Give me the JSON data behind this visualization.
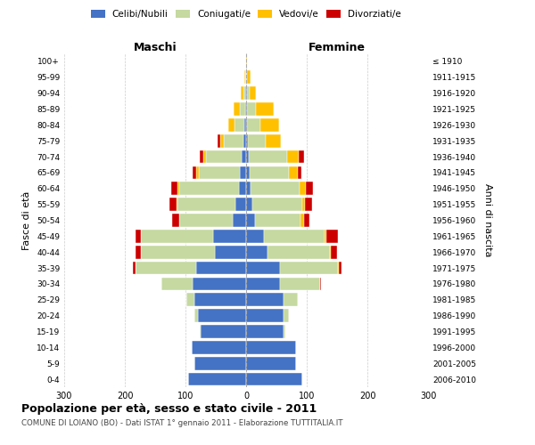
{
  "age_groups": [
    "0-4",
    "5-9",
    "10-14",
    "15-19",
    "20-24",
    "25-29",
    "30-34",
    "35-39",
    "40-44",
    "45-49",
    "50-54",
    "55-59",
    "60-64",
    "65-69",
    "70-74",
    "75-79",
    "80-84",
    "85-89",
    "90-94",
    "95-99",
    "100+"
  ],
  "birth_years": [
    "2006-2010",
    "2001-2005",
    "1996-2000",
    "1991-1995",
    "1986-1990",
    "1981-1985",
    "1976-1980",
    "1971-1975",
    "1966-1970",
    "1961-1965",
    "1956-1960",
    "1951-1955",
    "1946-1950",
    "1941-1945",
    "1936-1940",
    "1931-1935",
    "1926-1930",
    "1921-1925",
    "1916-1920",
    "1911-1915",
    "≤ 1910"
  ],
  "maschi": {
    "celibi": [
      95,
      85,
      90,
      75,
      80,
      85,
      88,
      82,
      52,
      55,
      22,
      18,
      12,
      10,
      8,
      5,
      3,
      2,
      1,
      0,
      0
    ],
    "coniugati": [
      0,
      0,
      0,
      1,
      5,
      14,
      52,
      100,
      122,
      118,
      88,
      95,
      98,
      68,
      58,
      32,
      16,
      8,
      3,
      1,
      0
    ],
    "vedovi": [
      0,
      0,
      0,
      0,
      0,
      0,
      0,
      0,
      0,
      0,
      0,
      2,
      3,
      5,
      5,
      5,
      10,
      10,
      5,
      2,
      0
    ],
    "divorziati": [
      0,
      0,
      0,
      0,
      0,
      0,
      0,
      5,
      8,
      10,
      12,
      12,
      10,
      5,
      5,
      5,
      0,
      0,
      0,
      0,
      0
    ]
  },
  "femmine": {
    "nubili": [
      92,
      82,
      82,
      62,
      62,
      62,
      56,
      56,
      36,
      30,
      14,
      10,
      8,
      6,
      5,
      3,
      2,
      2,
      1,
      0,
      0
    ],
    "coniugate": [
      0,
      0,
      0,
      2,
      8,
      24,
      66,
      96,
      102,
      100,
      76,
      82,
      80,
      65,
      62,
      30,
      22,
      14,
      5,
      2,
      0
    ],
    "vedove": [
      0,
      0,
      0,
      0,
      0,
      0,
      0,
      1,
      2,
      3,
      5,
      5,
      10,
      15,
      20,
      25,
      30,
      30,
      10,
      5,
      1
    ],
    "divorziate": [
      0,
      0,
      0,
      0,
      0,
      0,
      2,
      5,
      10,
      18,
      10,
      12,
      12,
      5,
      8,
      0,
      0,
      0,
      0,
      0,
      0
    ]
  },
  "colors": {
    "celibi_nubili": "#4472c4",
    "coniugati": "#c5d9a0",
    "vedovi": "#ffc000",
    "divorziati": "#cc0000"
  },
  "title": "Popolazione per età, sesso e stato civile - 2011",
  "subtitle": "COMUNE DI LOIANO (BO) - Dati ISTAT 1° gennaio 2011 - Elaborazione TUTTITALIA.IT",
  "label_maschi": "Maschi",
  "label_femmine": "Femmine",
  "ylabel_left": "Fasce di età",
  "ylabel_right": "Anni di nascita",
  "xlim": 300,
  "bg_color": "#ffffff",
  "grid_color": "#cccccc"
}
